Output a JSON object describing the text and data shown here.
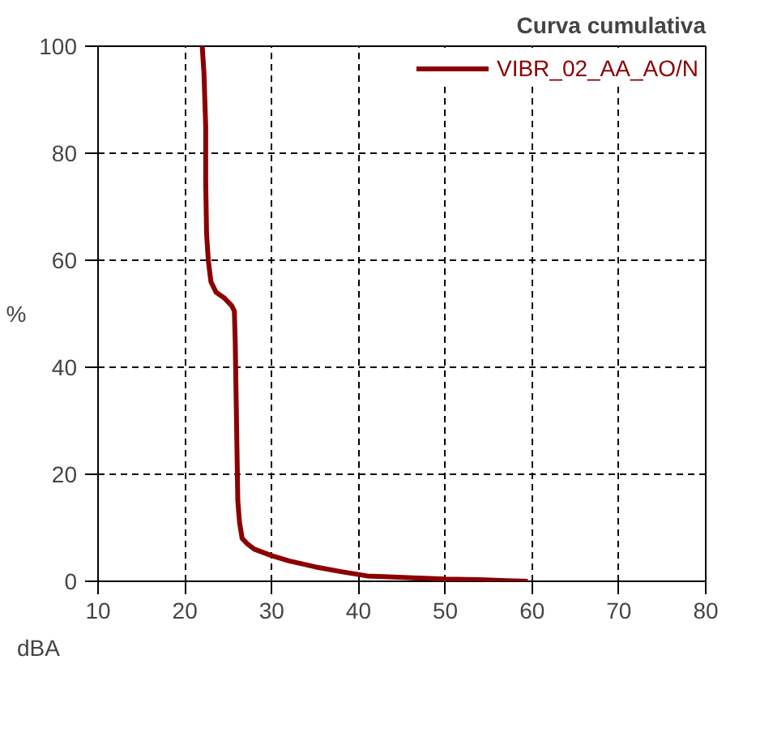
{
  "chart_data": {
    "type": "line",
    "title": "Curva cumulativa",
    "xlabel": "dBA",
    "ylabel": "%",
    "series": [
      {
        "name": "VIBR_02_AA_AO/N",
        "color": "#8b0000",
        "x": [
          22.0,
          22.2,
          22.4,
          22.4,
          22.5,
          22.7,
          23.0,
          23.6,
          24.5,
          25.4,
          25.7,
          25.8,
          25.9,
          26.0,
          26.1,
          26.3,
          26.6,
          27.2,
          28.0,
          30.0,
          32.0,
          35.0,
          38.0,
          41.0,
          44.0,
          47.0,
          50.0,
          54.0,
          57.0,
          59.5
        ],
        "values": [
          100,
          95,
          85,
          75,
          65,
          60,
          56,
          54,
          53,
          51.5,
          50.5,
          45,
          35,
          25,
          15,
          11,
          8,
          7,
          6,
          4.8,
          3.8,
          2.7,
          1.8,
          1.0,
          0.8,
          0.6,
          0.4,
          0.3,
          0.1,
          0
        ]
      }
    ],
    "xlim": [
      10,
      80
    ],
    "ylim": [
      0,
      100
    ],
    "xticks": [
      10,
      20,
      30,
      40,
      50,
      60,
      70,
      80
    ],
    "yticks": [
      0,
      20,
      40,
      60,
      80,
      100
    ],
    "grid": true,
    "legend": "top right",
    "line_style": "solid",
    "marker": "none"
  }
}
